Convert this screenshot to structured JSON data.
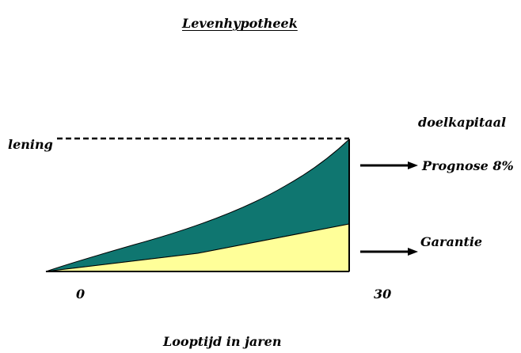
{
  "title": "Levenhypotheek",
  "labels": {
    "lening": "lening",
    "doelkapitaal": "doelkapitaal",
    "prognose": "Prognose 8%",
    "garantie": "Garantie"
  },
  "axis": {
    "x_ticks": [
      "0",
      "30"
    ],
    "x_label": "Looptijd in jaren"
  },
  "colors": {
    "prognose_area": "#0f7670",
    "garantie_area": "#ffff99",
    "lines": "#000000",
    "background": "#ffffff"
  }
}
